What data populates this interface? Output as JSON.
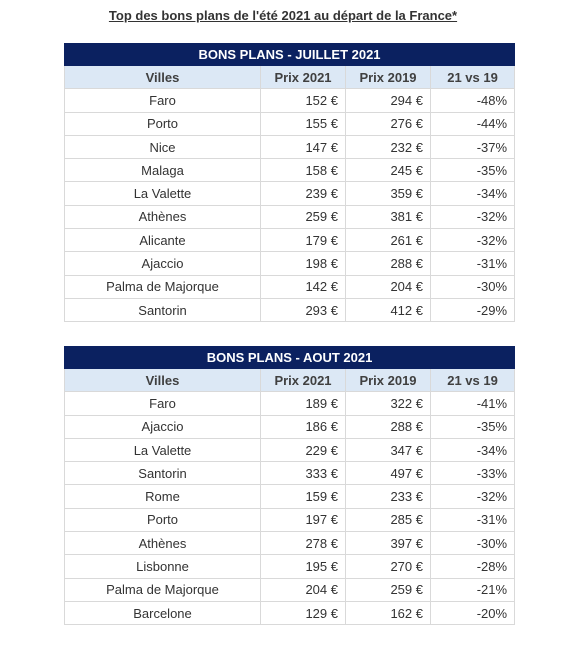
{
  "header": {
    "title": "Top des bons plans de l'été 2021 au départ de la France*"
  },
  "tables": [
    {
      "title": "BONS PLANS - JUILLET 2021",
      "columns": [
        "Villes",
        "Prix 2021",
        "Prix 2019",
        "21 vs 19"
      ],
      "rows": [
        [
          "Faro",
          "152 €",
          "294 €",
          "-48%"
        ],
        [
          "Porto",
          "155 €",
          "276 €",
          "-44%"
        ],
        [
          "Nice",
          "147 €",
          "232 €",
          "-37%"
        ],
        [
          "Malaga",
          "158 €",
          "245 €",
          "-35%"
        ],
        [
          "La Valette",
          "239 €",
          "359 €",
          "-34%"
        ],
        [
          "Athènes",
          "259 €",
          "381 €",
          "-32%"
        ],
        [
          "Alicante",
          "179 €",
          "261 €",
          "-32%"
        ],
        [
          "Ajaccio",
          "198 €",
          "288 €",
          "-31%"
        ],
        [
          "Palma de Majorque",
          "142 €",
          "204 €",
          "-30%"
        ],
        [
          "Santorin",
          "293 €",
          "412 €",
          "-29%"
        ]
      ]
    },
    {
      "title": "BONS PLANS - AOUT 2021",
      "columns": [
        "Villes",
        "Prix 2021",
        "Prix 2019",
        "21 vs 19"
      ],
      "rows": [
        [
          "Faro",
          "189 €",
          "322 €",
          "-41%"
        ],
        [
          "Ajaccio",
          "186 €",
          "288 €",
          "-35%"
        ],
        [
          "La Valette",
          "229 €",
          "347 €",
          "-34%"
        ],
        [
          "Santorin",
          "333 €",
          "497 €",
          "-33%"
        ],
        [
          "Rome",
          "159 €",
          "233 €",
          "-32%"
        ],
        [
          "Porto",
          "197 €",
          "285 €",
          "-31%"
        ],
        [
          "Athènes",
          "278 €",
          "397 €",
          "-30%"
        ],
        [
          "Lisbonne",
          "195 €",
          "270 €",
          "-28%"
        ],
        [
          "Palma de Majorque",
          "204 €",
          "259 €",
          "-21%"
        ],
        [
          "Barcelone",
          "129 €",
          "162 €",
          "-20%"
        ]
      ]
    }
  ]
}
